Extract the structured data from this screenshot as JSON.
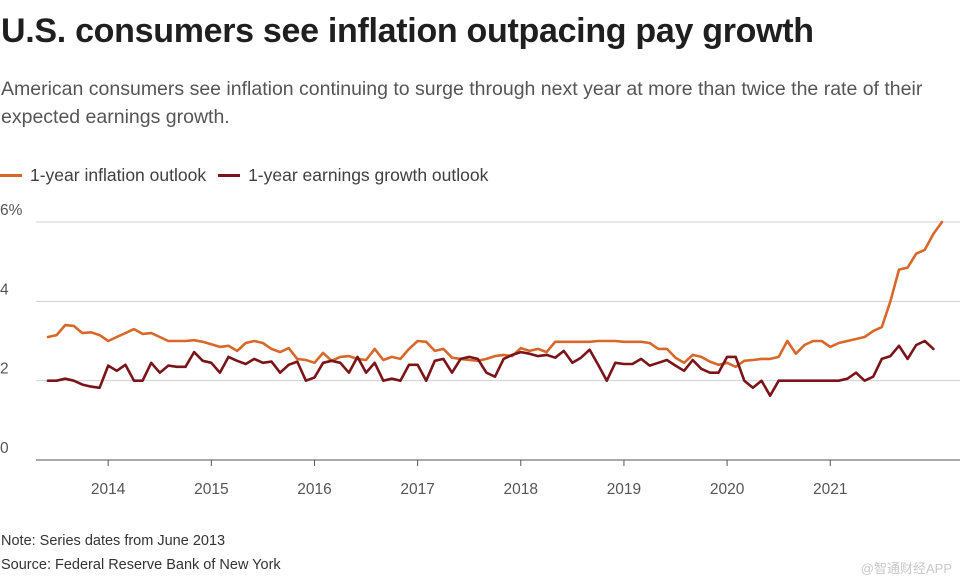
{
  "title": "U.S. consumers see inflation outpacing pay growth",
  "subtitle": "American consumers see inflation continuing to surge through next year at more than twice the rate of their expected earnings growth.",
  "notes": {
    "note": "Note: Series dates from June 2013",
    "source": "Source: Federal Reserve Bank of New York"
  },
  "watermark": "@智通财经APP",
  "chart_data": {
    "type": "line",
    "title": "U.S. consumers see inflation outpacing pay growth",
    "xlabel": "",
    "ylabel": "",
    "x_start": "2013-06",
    "x_frequency": "monthly",
    "x_ticks": [
      "2014",
      "2015",
      "2016",
      "2017",
      "2018",
      "2019",
      "2020",
      "2021"
    ],
    "y_ticks": [
      0,
      2,
      4,
      6
    ],
    "y_tick_labels": [
      "0",
      "2",
      "4",
      "6%"
    ],
    "ylim": [
      0,
      6
    ],
    "grid": true,
    "legend": "top-left",
    "series": [
      {
        "name": "1-year inflation outlook",
        "color": "#d8682a",
        "values": [
          3.1,
          3.15,
          3.4,
          3.38,
          3.2,
          3.22,
          3.15,
          3.0,
          3.1,
          3.2,
          3.3,
          3.18,
          3.2,
          3.1,
          3.0,
          3.0,
          3.0,
          3.02,
          2.98,
          2.92,
          2.85,
          2.88,
          2.75,
          2.95,
          3.0,
          2.95,
          2.8,
          2.72,
          2.82,
          2.55,
          2.52,
          2.45,
          2.7,
          2.5,
          2.6,
          2.62,
          2.55,
          2.52,
          2.8,
          2.52,
          2.6,
          2.55,
          2.8,
          3.0,
          2.98,
          2.75,
          2.8,
          2.58,
          2.55,
          2.52,
          2.5,
          2.55,
          2.62,
          2.65,
          2.62,
          2.82,
          2.75,
          2.8,
          2.72,
          2.98,
          2.98,
          2.98,
          2.98,
          2.98,
          3.0,
          3.0,
          3.0,
          2.98,
          2.98,
          2.98,
          2.95,
          2.8,
          2.8,
          2.58,
          2.45,
          2.65,
          2.6,
          2.48,
          2.4,
          2.45,
          2.35,
          2.5,
          2.52,
          2.55,
          2.55,
          2.6,
          3.0,
          2.68,
          2.9,
          3.0,
          3.0,
          2.85,
          2.95,
          3.0,
          3.05,
          3.1,
          3.25,
          3.35,
          4.0,
          4.8,
          4.85,
          5.2,
          5.3,
          5.7,
          6.0
        ]
      },
      {
        "name": "1-year earnings growth outlook",
        "color": "#7b1418",
        "values": [
          2.0,
          2.0,
          2.05,
          2.0,
          1.9,
          1.85,
          1.82,
          2.38,
          2.25,
          2.4,
          2.0,
          2.0,
          2.45,
          2.2,
          2.38,
          2.35,
          2.35,
          2.72,
          2.5,
          2.45,
          2.2,
          2.6,
          2.5,
          2.42,
          2.55,
          2.45,
          2.48,
          2.2,
          2.4,
          2.48,
          2.0,
          2.08,
          2.45,
          2.5,
          2.45,
          2.2,
          2.6,
          2.2,
          2.45,
          2.0,
          2.05,
          2.0,
          2.4,
          2.4,
          2.0,
          2.5,
          2.55,
          2.2,
          2.55,
          2.6,
          2.55,
          2.2,
          2.1,
          2.55,
          2.65,
          2.72,
          2.68,
          2.62,
          2.65,
          2.58,
          2.75,
          2.45,
          2.58,
          2.78,
          2.4,
          2.0,
          2.45,
          2.42,
          2.42,
          2.55,
          2.38,
          2.45,
          2.52,
          2.38,
          2.25,
          2.52,
          2.3,
          2.2,
          2.2,
          2.6,
          2.6,
          2.0,
          1.82,
          2.0,
          1.62,
          2.0,
          2.0,
          2.0,
          2.0,
          2.0,
          2.0,
          2.0,
          2.0,
          2.05,
          2.2,
          2.0,
          2.1,
          2.55,
          2.62,
          2.88,
          2.55,
          2.9,
          3.0,
          2.8
        ]
      }
    ]
  }
}
